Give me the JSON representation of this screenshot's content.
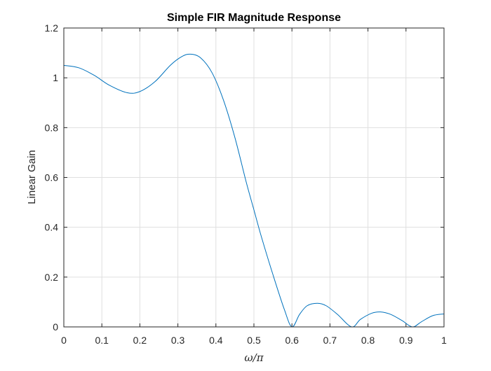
{
  "chart_data": {
    "type": "line",
    "title": "Simple FIR Magnitude Response",
    "xlabel": "ω/π",
    "ylabel": "Linear Gain",
    "xlim": [
      0,
      1
    ],
    "ylim": [
      0,
      1.2
    ],
    "xticks": [
      0,
      0.1,
      0.2,
      0.3,
      0.4,
      0.5,
      0.6,
      0.7,
      0.8,
      0.9,
      1
    ],
    "xtick_labels": [
      "0",
      "0.1",
      "0.2",
      "0.3",
      "0.4",
      "0.5",
      "0.6",
      "0.7",
      "0.8",
      "0.9",
      "1"
    ],
    "yticks": [
      0,
      0.2,
      0.4,
      0.6,
      0.8,
      1,
      1.2
    ],
    "ytick_labels": [
      "0",
      "0.2",
      "0.4",
      "0.6",
      "0.8",
      "1",
      "1.2"
    ],
    "grid": true,
    "series": [
      {
        "color": "#0072bd",
        "x": [
          0,
          0.04,
          0.08,
          0.12,
          0.167,
          0.2,
          0.24,
          0.28,
          0.31,
          0.333,
          0.36,
          0.39,
          0.42,
          0.45,
          0.48,
          0.5,
          0.52,
          0.55,
          0.58,
          0.6,
          0.62,
          0.64,
          0.667,
          0.69,
          0.72,
          0.757,
          0.78,
          0.81,
          0.833,
          0.86,
          0.89,
          0.917,
          0.94,
          0.97,
          1
        ],
        "y": [
          1.05,
          1.04,
          1.01,
          0.97,
          0.94,
          0.945,
          0.985,
          1.05,
          1.085,
          1.095,
          1.08,
          1.02,
          0.91,
          0.76,
          0.58,
          0.47,
          0.36,
          0.21,
          0.07,
          0.0,
          0.05,
          0.085,
          0.095,
          0.085,
          0.05,
          0.0,
          0.03,
          0.055,
          0.06,
          0.05,
          0.025,
          0.0,
          0.02,
          0.045,
          0.052
        ]
      }
    ]
  }
}
